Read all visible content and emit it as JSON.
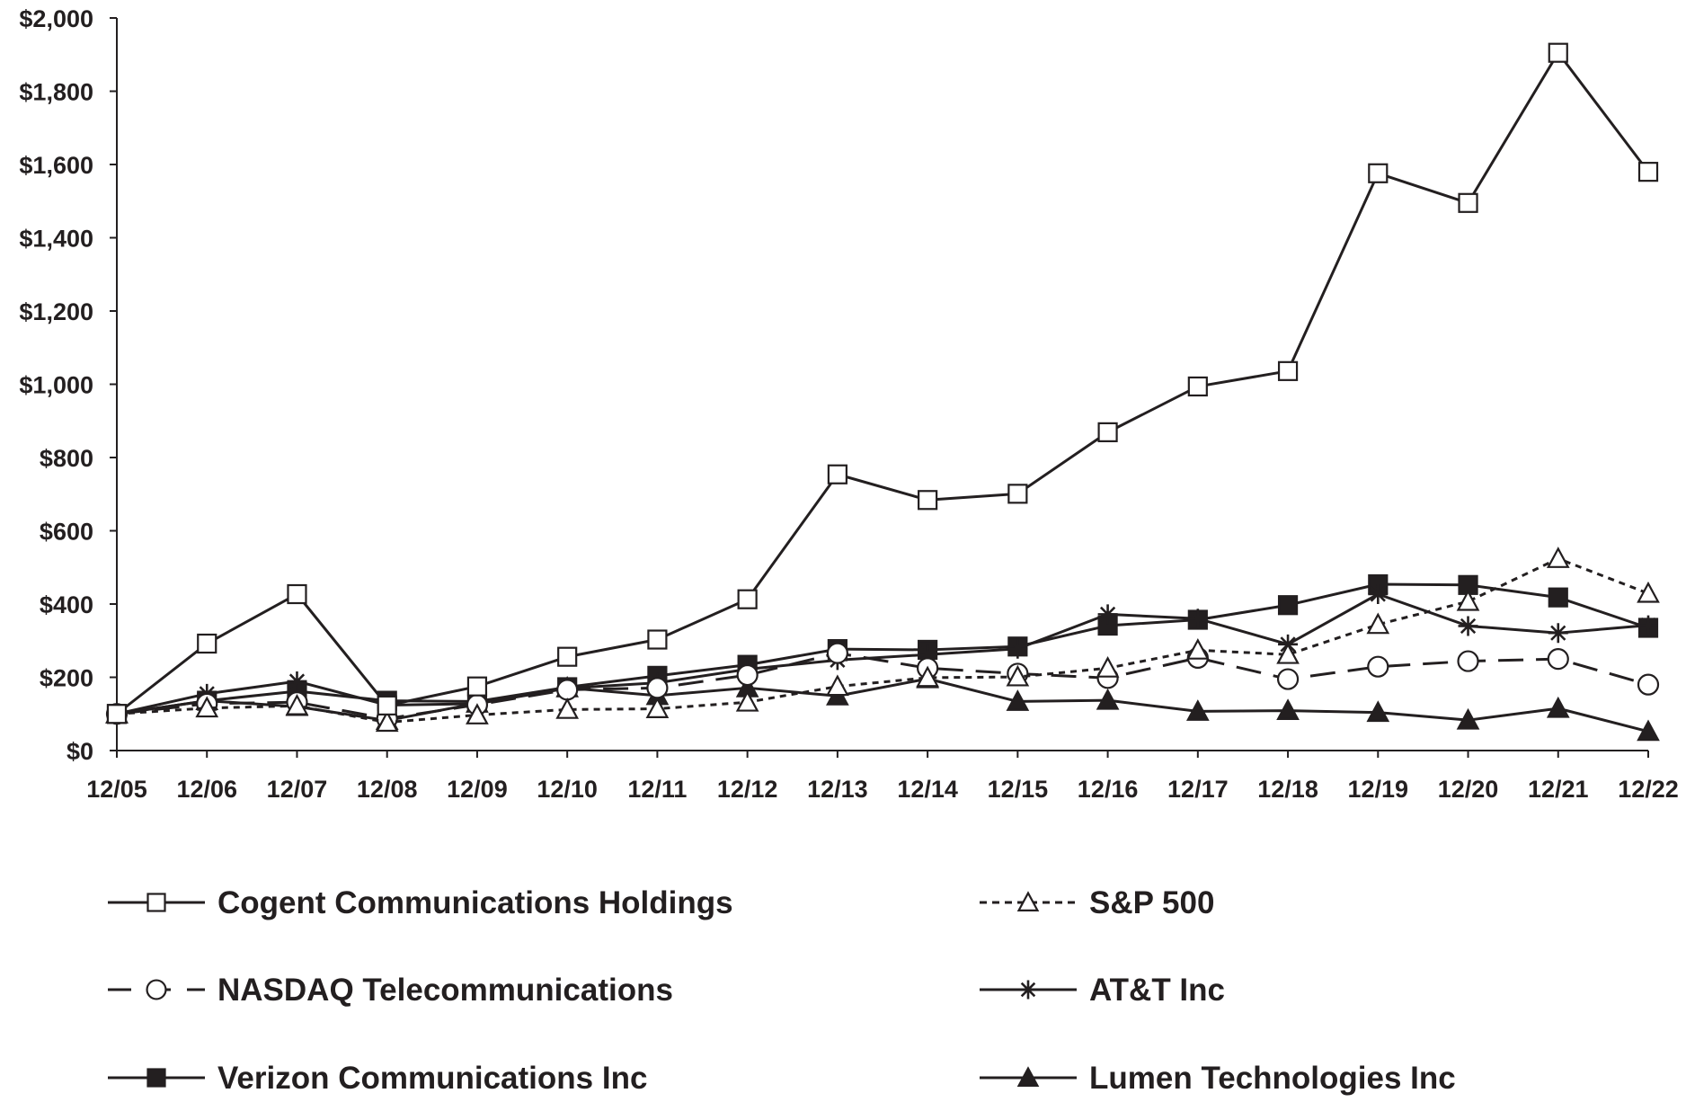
{
  "chart_data": {
    "type": "line",
    "title": "",
    "xlabel": "",
    "ylabel": "",
    "ylim": [
      0,
      2000
    ],
    "y_ticks": [
      0,
      200,
      400,
      600,
      800,
      1000,
      1200,
      1400,
      1600,
      1800,
      2000
    ],
    "y_tick_labels": [
      "$0",
      "$200",
      "$400",
      "$600",
      "$800",
      "$1,000",
      "$1,200",
      "$1,400",
      "$1,600",
      "$1,800",
      "$2,000"
    ],
    "categories": [
      "12/05",
      "12/06",
      "12/07",
      "12/08",
      "12/09",
      "12/10",
      "12/11",
      "12/12",
      "12/13",
      "12/14",
      "12/15",
      "12/16",
      "12/17",
      "12/18",
      "12/19",
      "12/20",
      "12/21",
      "12/22"
    ],
    "grid": false,
    "legend_position": "bottom",
    "color": "#231f20",
    "series": [
      {
        "name": "Cogent Communications Holdings",
        "marker": "square-open",
        "dash": "solid",
        "values": [
          100,
          292,
          427,
          123,
          175,
          256,
          303,
          413,
          754,
          684,
          701,
          869,
          994,
          1036,
          1576,
          1495,
          1905,
          1580
        ]
      },
      {
        "name": "S&P 500",
        "marker": "triangle-open",
        "dash": "short-dash",
        "values": [
          100,
          116,
          122,
          77,
          97,
          112,
          114,
          132,
          175,
          199,
          201,
          225,
          274,
          262,
          344,
          407,
          524,
          429
        ]
      },
      {
        "name": "NASDAQ Telecommunications",
        "marker": "circle-open",
        "dash": "long-dash",
        "values": [
          100,
          128,
          132,
          87,
          125,
          166,
          171,
          206,
          266,
          225,
          210,
          198,
          253,
          195,
          229,
          244,
          250,
          180
        ]
      },
      {
        "name": "AT&T Inc",
        "marker": "asterisk",
        "dash": "solid",
        "values": [
          100,
          155,
          189,
          124,
          128,
          170,
          185,
          222,
          247,
          262,
          278,
          372,
          360,
          290,
          427,
          340,
          321,
          342
        ]
      },
      {
        "name": "Verizon Communications Inc",
        "marker": "square-filled",
        "dash": "solid",
        "values": [
          100,
          136,
          162,
          136,
          134,
          173,
          204,
          234,
          277,
          275,
          284,
          341,
          357,
          397,
          454,
          452,
          418,
          335
        ]
      },
      {
        "name": "Lumen Technologies Inc",
        "marker": "triangle-filled",
        "dash": "solid",
        "values": [
          100,
          136,
          120,
          82,
          129,
          171,
          150,
          171,
          149,
          196,
          134,
          137,
          107,
          109,
          104,
          83,
          115,
          52
        ]
      }
    ]
  }
}
